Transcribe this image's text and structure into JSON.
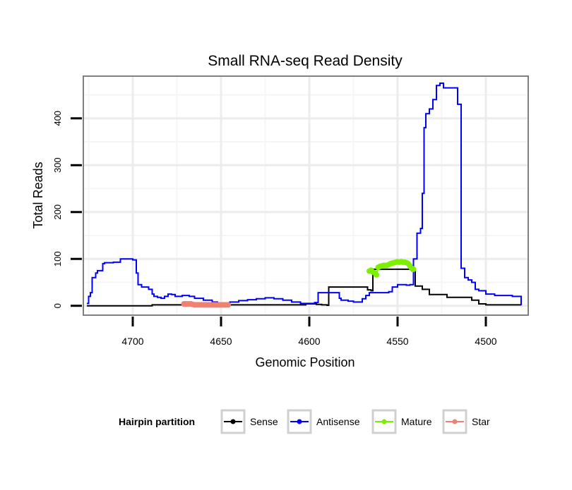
{
  "chart_data": {
    "type": "line",
    "title": "Small RNA-seq Read Density",
    "xlabel": "Genomic Position",
    "ylabel": "Total Reads",
    "xlim": [
      4728,
      4476
    ],
    "ylim": [
      -20,
      490
    ],
    "x_reversed": true,
    "grid": true,
    "x_ticks": [
      4700,
      4650,
      4600,
      4550,
      4500
    ],
    "x_tick_labels": [
      "4700",
      "4650",
      "4600",
      "4550",
      "4500"
    ],
    "y_ticks": [
      0,
      100,
      200,
      300,
      400
    ],
    "y_tick_labels": [
      "0",
      "100",
      "200",
      "300",
      "400"
    ],
    "legend": {
      "title": "Hairpin partition",
      "position": "bottom",
      "entries": [
        "Sense",
        "Antisense",
        "Mature",
        "Star"
      ]
    },
    "series": [
      {
        "name": "Sense",
        "color": "#000000",
        "style": "line",
        "x": [
          4726,
          4690,
          4689,
          4603,
          4602,
          4598,
          4596,
          4593,
          4590,
          4589,
          4568,
          4567,
          4565,
          4564,
          4545,
          4542,
          4540,
          4536,
          4532,
          4524,
          4522,
          4514,
          4512,
          4508,
          4504,
          4500,
          4490,
          4480
        ],
        "y": [
          0,
          0,
          2,
          2,
          4,
          4,
          3,
          2,
          1,
          40,
          40,
          34,
          32,
          78,
          78,
          75,
          42,
          35,
          24,
          24,
          18,
          18,
          18,
          12,
          4,
          2,
          2,
          1
        ]
      },
      {
        "name": "Antisense",
        "color": "#0000ff",
        "style": "line",
        "x": [
          4726,
          4725,
          4724,
          4723,
          4721,
          4720,
          4719,
          4717,
          4716,
          4711,
          4707,
          4704,
          4700,
          4698,
          4697,
          4695,
          4693,
          4691,
          4689,
          4688,
          4686,
          4684,
          4682,
          4680,
          4678,
          4676,
          4672,
          4668,
          4665,
          4660,
          4655,
          4652,
          4649,
          4646,
          4645,
          4640,
          4635,
          4630,
          4625,
          4620,
          4615,
          4610,
          4605,
          4602,
          4597,
          4595,
          4593,
          4588,
          4585,
          4583,
          4582,
          4578,
          4575,
          4573,
          4570,
          4568,
          4566,
          4560,
          4555,
          4553,
          4550,
          4545,
          4543,
          4541,
          4539,
          4537,
          4536,
          4535,
          4534,
          4532,
          4530,
          4528,
          4526,
          4524,
          4520,
          4518,
          4516,
          4515,
          4514,
          4512,
          4510,
          4508,
          4506,
          4504,
          4500,
          4495,
          4490,
          4485,
          4480
        ],
        "y": [
          5,
          20,
          28,
          60,
          70,
          75,
          75,
          90,
          92,
          93,
          100,
          100,
          98,
          70,
          45,
          40,
          40,
          35,
          25,
          20,
          18,
          16,
          20,
          25,
          24,
          20,
          22,
          20,
          16,
          12,
          8,
          6,
          5,
          6,
          8,
          11,
          13,
          15,
          17,
          15,
          12,
          8,
          5,
          5,
          7,
          28,
          28,
          28,
          28,
          16,
          12,
          10,
          8,
          8,
          15,
          22,
          28,
          28,
          30,
          40,
          45,
          44,
          45,
          100,
          155,
          165,
          240,
          380,
          410,
          420,
          440,
          470,
          475,
          465,
          465,
          465,
          430,
          430,
          80,
          60,
          55,
          50,
          35,
          32,
          25,
          22,
          22,
          20,
          1
        ]
      },
      {
        "name": "Mature",
        "color": "#7cf000",
        "style": "points",
        "x": [
          4566,
          4565,
          4564,
          4563,
          4562,
          4561,
          4560,
          4559,
          4558,
          4557,
          4556,
          4555,
          4554,
          4553,
          4552,
          4551,
          4550,
          4549,
          4548,
          4547,
          4546,
          4545,
          4544,
          4543,
          4542,
          4541
        ],
        "y": [
          74,
          76,
          72,
          70,
          66,
          82,
          84,
          85,
          86,
          86,
          86,
          88,
          90,
          91,
          92,
          93,
          94,
          93,
          94,
          93,
          93,
          92,
          90,
          85,
          80,
          78
        ]
      },
      {
        "name": "Star",
        "color": "#f08070",
        "style": "points",
        "x": [
          4671,
          4670,
          4669,
          4668,
          4667,
          4666,
          4665,
          4664,
          4663,
          4662,
          4661,
          4660,
          4659,
          4658,
          4657,
          4656,
          4655,
          4654,
          4653,
          4652,
          4651,
          4650,
          4649,
          4648,
          4647,
          4646
        ],
        "y": [
          4,
          4,
          4,
          4,
          4,
          3,
          2,
          2,
          2,
          2,
          2,
          2,
          2,
          2,
          2,
          2,
          2,
          2,
          2,
          2,
          2,
          2,
          2,
          2,
          2,
          2
        ]
      }
    ]
  }
}
